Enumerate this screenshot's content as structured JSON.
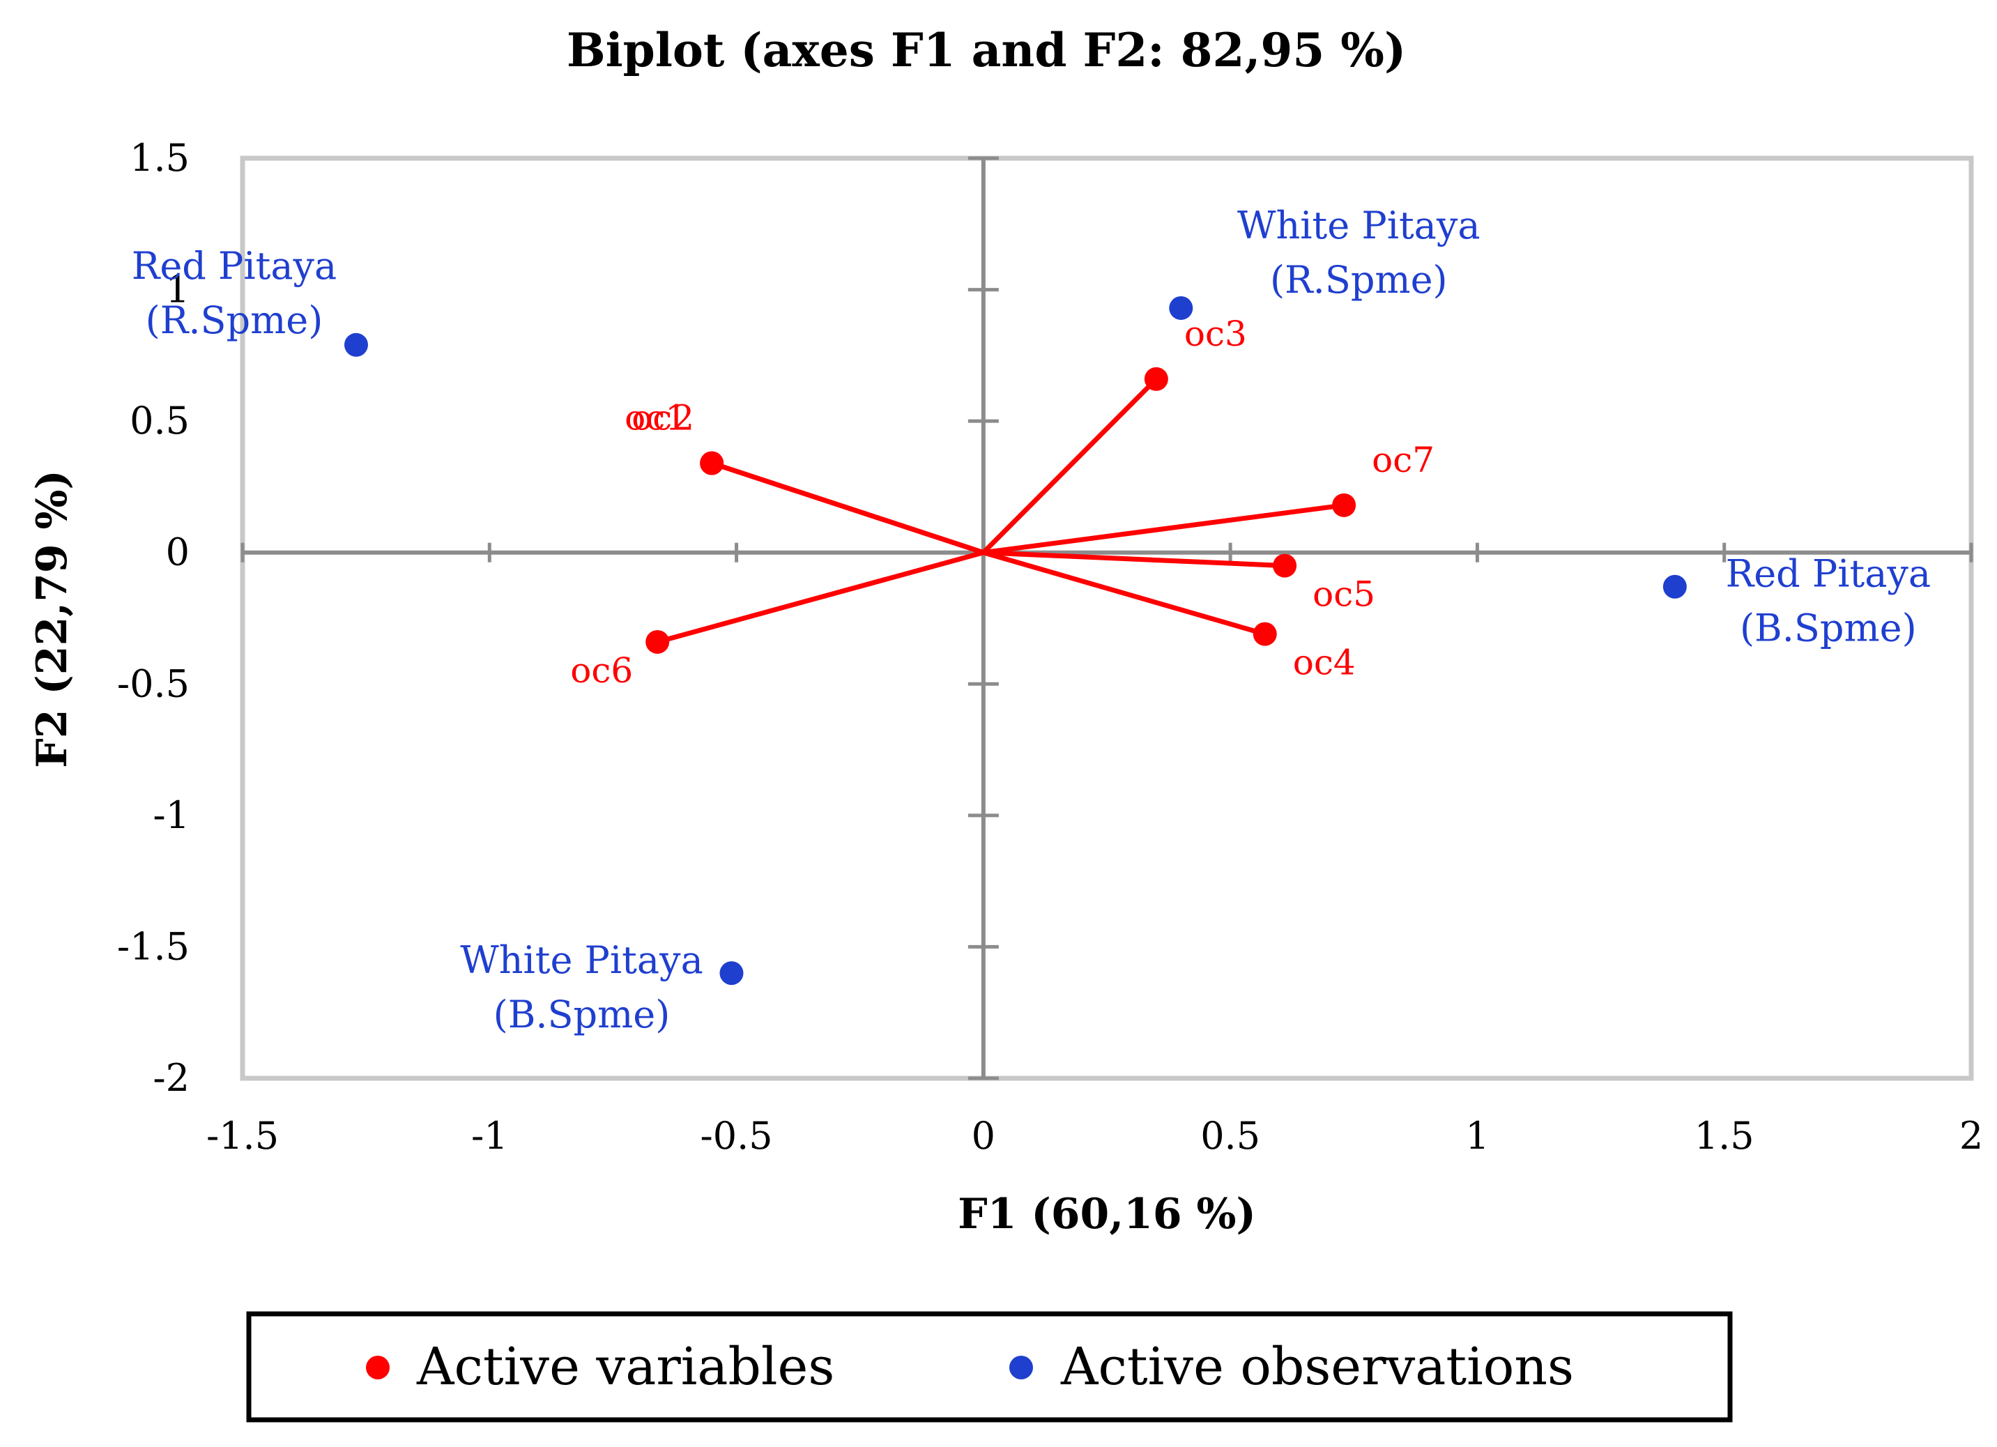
{
  "chart_data": {
    "type": "scatter",
    "subtype": "biplot",
    "title": "Biplot (axes F1 and F2: 82,95 %)",
    "xlabel": "F1 (60,16 %)",
    "ylabel": "F2 (22,79 %)",
    "xlim": [
      -1.5,
      2
    ],
    "ylim": [
      -2,
      1.5
    ],
    "xticks": [
      -1.5,
      -1,
      -0.5,
      0,
      0.5,
      1,
      1.5,
      2
    ],
    "xtick_labels": [
      "-1.5",
      "-1",
      "-0.5",
      "0",
      "0.5",
      "1",
      "1.5",
      "2"
    ],
    "yticks": [
      1.5,
      1,
      0.5,
      0,
      -0.5,
      -1,
      -1.5,
      -2
    ],
    "ytick_labels": [
      "1.5",
      "1",
      "0.5",
      "0",
      "-0.5",
      "-1",
      "-1.5",
      "-2"
    ],
    "grid": false,
    "legend": {
      "position": "bottom",
      "entries": [
        {
          "label": "Active variables",
          "color": "#ff0000"
        },
        {
          "label": "Active observations",
          "color": "#1f3fcf"
        }
      ]
    },
    "series": [
      {
        "name": "Active variables",
        "color": "#ff0000",
        "style": "vectors",
        "points": [
          {
            "label": "oc1",
            "x": -0.55,
            "y": 0.34
          },
          {
            "label": "oc2",
            "x": -0.55,
            "y": 0.34
          },
          {
            "label": "oc3",
            "x": 0.35,
            "y": 0.66
          },
          {
            "label": "oc7",
            "x": 0.73,
            "y": 0.18
          },
          {
            "label": "oc5",
            "x": 0.61,
            "y": -0.05
          },
          {
            "label": "oc4",
            "x": 0.57,
            "y": -0.31
          },
          {
            "label": "oc6",
            "x": -0.66,
            "y": -0.34
          }
        ]
      },
      {
        "name": "Active observations",
        "color": "#1f3fcf",
        "style": "points",
        "points": [
          {
            "label": [
              "Red Pitaya",
              "(R.Spme)"
            ],
            "x": -1.27,
            "y": 0.79
          },
          {
            "label": [
              "White Pitaya",
              "(R.Spme)"
            ],
            "x": 0.4,
            "y": 0.93
          },
          {
            "label": [
              "Red Pitaya",
              "(B.Spme)"
            ],
            "x": 1.4,
            "y": -0.13
          },
          {
            "label": [
              "White Pitaya",
              "(B.Spme)"
            ],
            "x": -0.51,
            "y": -1.6
          }
        ]
      }
    ]
  }
}
